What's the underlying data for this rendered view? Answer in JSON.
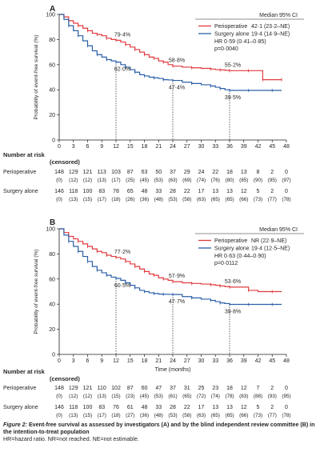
{
  "chart_data": [
    {
      "panel": "A",
      "type": "line",
      "ylabel": "Probability of event-free survival (%)",
      "xlabel": "",
      "xlim": [
        0,
        48
      ],
      "ylim": [
        0,
        100
      ],
      "xticks": [
        "0",
        "3",
        "6",
        "9",
        "12",
        "15",
        "18",
        "21",
        "24",
        "27",
        "30",
        "33",
        "36",
        "39",
        "42",
        "45",
        "48"
      ],
      "yticks": [
        "0",
        "20",
        "40",
        "60",
        "80",
        "100"
      ],
      "legend_header": "Median 95% CI",
      "series": [
        {
          "name": "Perioperative",
          "stat": "42·1 (23·2–NE)",
          "color": "#e03a3e",
          "x": [
            0,
            1,
            2,
            3,
            4,
            5,
            6,
            7,
            8,
            9,
            10,
            11,
            12,
            13,
            14,
            15,
            16,
            17,
            18,
            19,
            20,
            21,
            22,
            23,
            24,
            26,
            28,
            30,
            32,
            33,
            34,
            35,
            36,
            38,
            40,
            42,
            43,
            45,
            47
          ],
          "y": [
            100,
            98,
            95,
            93,
            91,
            89,
            87,
            85,
            84,
            83,
            81,
            80,
            79.4,
            78,
            76,
            74,
            72,
            70,
            68,
            66,
            65,
            63,
            62,
            60,
            58.8,
            58,
            57.5,
            57,
            56.5,
            56,
            55.8,
            55.5,
            55.2,
            55.2,
            55.2,
            55.2,
            48,
            48,
            48
          ]
        },
        {
          "name": "Surgery alone",
          "stat": "19·4 (14·9–NE)",
          "color": "#2b5fa8",
          "x": [
            0,
            1,
            2,
            3,
            4,
            5,
            6,
            7,
            8,
            9,
            10,
            11,
            12,
            13,
            14,
            15,
            16,
            17,
            18,
            19,
            20,
            21,
            22,
            23,
            24,
            26,
            28,
            30,
            32,
            33,
            34,
            35,
            36,
            38,
            40,
            42,
            45,
            47
          ],
          "y": [
            100,
            96,
            91,
            87,
            83,
            79,
            75,
            71,
            68,
            66,
            64,
            63,
            62,
            60,
            58,
            56,
            54,
            52,
            51,
            50,
            49.5,
            49,
            48,
            47.8,
            47.4,
            46,
            45,
            44,
            43,
            42,
            41,
            40,
            39.5,
            39.5,
            39.5,
            39.5,
            39.5,
            39.5
          ]
        }
      ],
      "annotations": [
        {
          "text": "HR 0·59 (0·41–0·85)"
        },
        {
          "text": "p=0·0040"
        },
        {
          "text": "79·4%",
          "x": 12,
          "y": 79.4
        },
        {
          "text": "62·0%",
          "x": 12,
          "y": 62
        },
        {
          "text": "58·8%",
          "x": 24,
          "y": 58.8
        },
        {
          "text": "47·4%",
          "x": 24,
          "y": 47.4
        },
        {
          "text": "55·2%",
          "x": 36,
          "y": 55.2
        },
        {
          "text": "39·5%",
          "x": 36,
          "y": 39.5
        }
      ],
      "risk_table": {
        "title": [
          "Number at risk",
          "(censored)"
        ],
        "rows": [
          {
            "label": "Perioperative",
            "n": [
              "148",
              "129",
              "121",
              "113",
              "103",
              "87",
              "63",
              "50",
              "37",
              "29",
              "24",
              "22",
              "18",
              "13",
              "8",
              "2",
              "0"
            ],
            "c": [
              "(0)",
              "(12)",
              "(12)",
              "(13)",
              "(17)",
              "(25)",
              "(45)",
              "(53)",
              "(63)",
              "(69)",
              "(74)",
              "(76)",
              "(80)",
              "(85)",
              "(90)",
              "(95)",
              "(97)"
            ]
          },
          {
            "label": "Surgery alone",
            "n": [
              "146",
              "118",
              "100",
              "83",
              "78",
              "65",
              "48",
              "33",
              "28",
              "22",
              "17",
              "13",
              "13",
              "12",
              "5",
              "2",
              "0"
            ],
            "c": [
              "(0)",
              "(13)",
              "(15)",
              "(17)",
              "(18)",
              "(26)",
              "(36)",
              "(48)",
              "(53)",
              "(58)",
              "(63)",
              "(65)",
              "(65)",
              "(66)",
              "(73)",
              "(77)",
              "(78)"
            ]
          }
        ]
      }
    },
    {
      "panel": "B",
      "type": "line",
      "ylabel": "Probability of event-free survival (%)",
      "xlabel": "Time (months)",
      "xlim": [
        0,
        48
      ],
      "ylim": [
        0,
        100
      ],
      "xticks": [
        "0",
        "3",
        "6",
        "9",
        "12",
        "15",
        "18",
        "21",
        "24",
        "27",
        "30",
        "33",
        "36",
        "39",
        "42",
        "45",
        "48"
      ],
      "yticks": [
        "0",
        "20",
        "40",
        "60",
        "80",
        "100"
      ],
      "legend_header": "Median 95% CI",
      "series": [
        {
          "name": "Perioperative",
          "stat": "NR (22·9–NE)",
          "color": "#e03a3e",
          "x": [
            0,
            1,
            2,
            3,
            4,
            5,
            6,
            7,
            8,
            9,
            10,
            11,
            12,
            13,
            14,
            15,
            16,
            17,
            18,
            19,
            20,
            21,
            22,
            23,
            24,
            26,
            28,
            30,
            32,
            33,
            34,
            35,
            36,
            38,
            40,
            42,
            45,
            47
          ],
          "y": [
            100,
            97,
            94,
            92,
            90,
            88,
            86,
            84,
            82,
            81,
            79,
            78,
            77.2,
            76,
            74,
            72,
            70,
            68,
            66,
            64,
            63,
            61,
            60,
            59,
            57.9,
            57,
            56.5,
            56,
            55.5,
            55,
            54.5,
            54,
            53.6,
            53.6,
            51,
            50,
            50,
            50
          ]
        },
        {
          "name": "Surgery alone",
          "stat": "19·4 (12·5–NE)",
          "color": "#2b5fa8",
          "x": [
            0,
            1,
            2,
            3,
            4,
            5,
            6,
            7,
            8,
            9,
            10,
            11,
            12,
            13,
            14,
            15,
            16,
            17,
            18,
            19,
            20,
            21,
            22,
            23,
            24,
            26,
            28,
            30,
            32,
            33,
            34,
            35,
            36,
            38,
            40,
            42,
            45,
            47
          ],
          "y": [
            100,
            95,
            90,
            86,
            82,
            78,
            74,
            70,
            67,
            65,
            63,
            61.5,
            60.5,
            59,
            57,
            55,
            53,
            51,
            50,
            49,
            48.5,
            48,
            47.9,
            47.8,
            47.7,
            46,
            45,
            44,
            43,
            42,
            41,
            40.5,
            39.8,
            39.8,
            39.8,
            39.8,
            39.8,
            39.8
          ]
        }
      ],
      "annotations": [
        {
          "text": "HR 0·63 (0·44–0·90)"
        },
        {
          "text": "p=0·0112"
        },
        {
          "text": "77·2%",
          "x": 12,
          "y": 77.2
        },
        {
          "text": "60·5%",
          "x": 12,
          "y": 60.5
        },
        {
          "text": "57·9%",
          "x": 24,
          "y": 57.9
        },
        {
          "text": "47·7%",
          "x": 24,
          "y": 47.7
        },
        {
          "text": "53·6%",
          "x": 36,
          "y": 53.6
        },
        {
          "text": "39·8%",
          "x": 36,
          "y": 39.8
        }
      ],
      "risk_table": {
        "title": [
          "Number at risk",
          "(censored)"
        ],
        "rows": [
          {
            "label": "Perioperative",
            "n": [
              "148",
              "129",
              "121",
              "110",
              "102",
              "87",
              "60",
              "47",
              "37",
              "31",
              "25",
              "23",
              "18",
              "12",
              "7",
              "2",
              "0"
            ],
            "c": [
              "(0)",
              "(12)",
              "(12)",
              "(13)",
              "(15)",
              "(23)",
              "(45)",
              "(53)",
              "(61)",
              "(65)",
              "(72)",
              "(74)",
              "(78)",
              "(83)",
              "(88)",
              "(93)",
              "(95)"
            ]
          },
          {
            "label": "Surgery alone",
            "n": [
              "146",
              "118",
              "100",
              "83",
              "76",
              "61",
              "48",
              "33",
              "28",
              "22",
              "17",
              "13",
              "13",
              "12",
              "5",
              "2",
              "0"
            ],
            "c": [
              "(0)",
              "(13)",
              "(15)",
              "(17)",
              "(18)",
              "(27)",
              "(36)",
              "(48)",
              "(53)",
              "(58)",
              "(63)",
              "(65)",
              "(65)",
              "(66)",
              "(73)",
              "(77)",
              "(78)"
            ]
          }
        ]
      }
    }
  ],
  "caption": {
    "fig": "Figure 2:",
    "text": " Event-free survival as assessed by investigators (A) and by the blind independent review committee (B) in the intention-to-treat population",
    "note": "HR=hazard ratio. NR=not reached. NE=not estimable."
  }
}
